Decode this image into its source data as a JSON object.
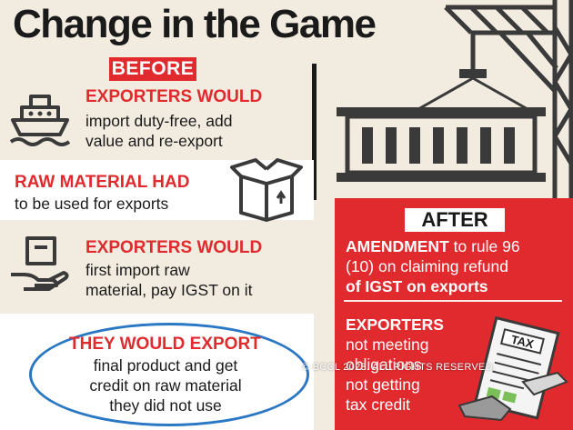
{
  "title": "Change in the Game",
  "before_label": "BEFORE",
  "after_label": "AFTER",
  "before_items": [
    {
      "heading": "EXPORTERS WOULD",
      "body": [
        "import duty-free, add",
        "value and re-export"
      ],
      "icon": "ship-icon"
    },
    {
      "heading": "RAW MATERIAL HAD",
      "body": [
        "to be used for exports"
      ],
      "icon": "box-icon"
    },
    {
      "heading": "EXPORTERS WOULD",
      "body": [
        "first import raw",
        "material, pay IGST on it"
      ],
      "icon": "hand-package-icon"
    },
    {
      "heading": "THEY WOULD EXPORT",
      "body": [
        "final product and get",
        "credit on raw material",
        "they did not use"
      ],
      "icon": ""
    }
  ],
  "after_items": [
    {
      "bold": "AMENDMENT",
      "lines": [
        "to rule 96",
        "(10) on claiming refund",
        "of IGST on exports"
      ],
      "bold_last": "of IGST on exports"
    },
    {
      "bold": "EXPORTERS",
      "lines": [
        "not meeting",
        "obligations",
        "not getting",
        "tax credit"
      ]
    }
  ],
  "tax_label": "TAX",
  "watermark": "© BCCL 2023. ALL RIGHTS RESERVED.",
  "icons": [
    "crane-icon",
    "container-icon",
    "ship-icon",
    "box-icon",
    "hand-package-icon",
    "tax-form-icon"
  ],
  "colors": {
    "accent_red": "#e02a2e",
    "background": "#f2ebdf",
    "ellipse_blue": "#2a77c4",
    "dark": "#1a1a1a"
  }
}
